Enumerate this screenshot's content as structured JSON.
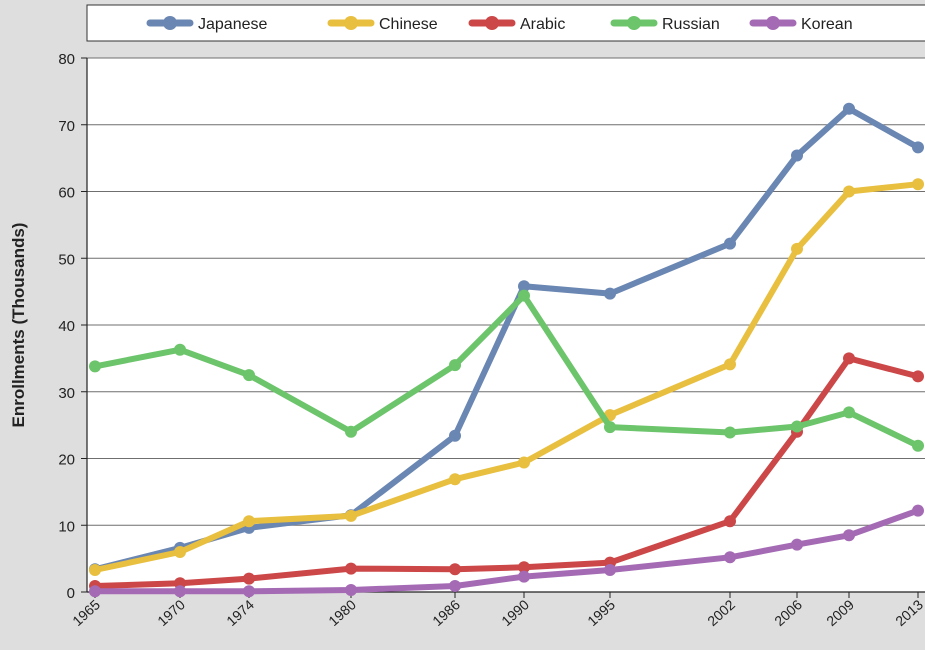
{
  "chart_data": {
    "type": "line",
    "title": "",
    "xlabel": "",
    "ylabel": "Enrollments (Thousands)",
    "ylim": [
      0,
      80
    ],
    "yticks": [
      0,
      10,
      20,
      30,
      40,
      50,
      60,
      70,
      80
    ],
    "x": [
      1965,
      1970,
      1974,
      1980,
      1986,
      1990,
      1995,
      2002,
      2006,
      2009,
      2013
    ],
    "x_tick_labels": [
      "1965",
      "1970",
      "1974",
      "1980",
      "1986",
      "1990",
      "1995",
      "2002",
      "2006",
      "2009",
      "2013"
    ],
    "grid": "horizontal",
    "legend_position": "top",
    "series": [
      {
        "name": "Japanese",
        "color": "#6a86b2",
        "values": [
          3.4,
          6.6,
          9.6,
          11.5,
          23.4,
          45.8,
          44.7,
          52.2,
          65.4,
          72.4,
          66.6
        ]
      },
      {
        "name": "Chinese",
        "color": "#e8bf3f",
        "values": [
          3.3,
          6.0,
          10.6,
          11.4,
          16.9,
          19.4,
          26.5,
          34.1,
          51.4,
          60.0,
          61.1
        ]
      },
      {
        "name": "Arabic",
        "color": "#cc4747",
        "values": [
          0.9,
          1.3,
          2.0,
          3.5,
          3.4,
          3.7,
          4.4,
          10.6,
          24.0,
          35.0,
          32.3
        ]
      },
      {
        "name": "Russian",
        "color": "#6cc46b",
        "values": [
          33.8,
          36.3,
          32.5,
          24.0,
          34.0,
          44.4,
          24.7,
          23.9,
          24.8,
          26.9,
          21.9
        ]
      },
      {
        "name": "Korean",
        "color": "#a46bb4",
        "values": [
          0.1,
          0.1,
          0.1,
          0.3,
          0.9,
          2.3,
          3.3,
          5.2,
          7.1,
          8.5,
          12.2
        ]
      }
    ]
  }
}
